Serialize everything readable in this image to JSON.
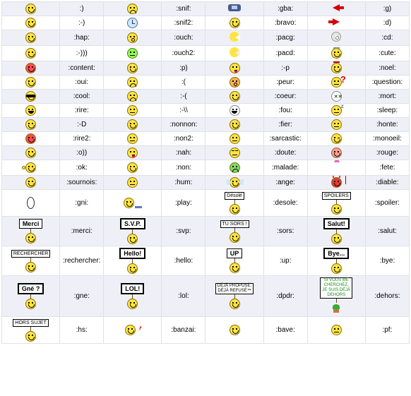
{
  "rows": [
    {
      "h": "",
      "cells": [
        {
          "icon": "face-smile",
          "code": ":)"
        },
        {
          "icon": "face-snif",
          "code": ":snif:"
        },
        {
          "icon": "gba",
          "code": ":gba:"
        },
        {
          "icon": "arrow-left",
          "code": ":g)"
        }
      ]
    },
    {
      "h": "",
      "cells": [
        {
          "icon": "face-smile",
          "code": ":-)"
        },
        {
          "icon": "clock",
          "code": ":snif2:"
        },
        {
          "icon": "face-smile",
          "code": ":bravo:"
        },
        {
          "icon": "arrow-right",
          "code": ":d)"
        }
      ]
    },
    {
      "h": "",
      "cells": [
        {
          "icon": "face-smile",
          "code": ":hap:"
        },
        {
          "icon": "face-ouch",
          "code": ":ouch:"
        },
        {
          "icon": "pacman",
          "code": ":pacg:"
        },
        {
          "icon": "cd",
          "code": ":cd:"
        }
      ]
    },
    {
      "h": "",
      "cells": [
        {
          "icon": "face-smile",
          "code": ":-)))"
        },
        {
          "icon": "face-dizzy",
          "code": ":ouch2:"
        },
        {
          "icon": "pacman-alt",
          "code": ":pacd:"
        },
        {
          "icon": "face-cute",
          "code": ":cute:"
        }
      ]
    },
    {
      "h": "",
      "cells": [
        {
          "icon": "face-red",
          "code": ":content:"
        },
        {
          "icon": "face-smile",
          "code": ":p)"
        },
        {
          "icon": "face-tongue",
          "code": ":-p"
        },
        {
          "icon": "face-noel",
          "code": ":noel:"
        }
      ]
    },
    {
      "h": "",
      "cells": [
        {
          "icon": "face-smile",
          "code": ":oui:"
        },
        {
          "icon": "face-frown",
          "code": ":("
        },
        {
          "icon": "face-peur",
          "code": ":peur:"
        },
        {
          "icon": "face-question",
          "code": ":question:"
        }
      ]
    },
    {
      "h": "",
      "cells": [
        {
          "icon": "face-cool",
          "code": ":cool:"
        },
        {
          "icon": "face-frown",
          "code": ":-("
        },
        {
          "icon": "face-coeur",
          "code": ":coeur:"
        },
        {
          "icon": "face-mort",
          "code": ":mort:"
        }
      ]
    },
    {
      "h": "",
      "cells": [
        {
          "icon": "face-grin",
          "code": ":rire:"
        },
        {
          "icon": "face-flat",
          "code": ":-\\\\"
        },
        {
          "icon": "face-fou",
          "code": ":fou:"
        },
        {
          "icon": "face-sleep",
          "code": ":sleep:"
        }
      ]
    },
    {
      "h": "",
      "cells": [
        {
          "icon": "face-smile",
          "code": ":-D"
        },
        {
          "icon": "face-smile",
          "code": ":nonnon:"
        },
        {
          "icon": "face-smile",
          "code": ":fier:"
        },
        {
          "icon": "face-honte",
          "code": ":honte:"
        }
      ]
    },
    {
      "h": "",
      "cells": [
        {
          "icon": "face-red",
          "code": ":rire2:"
        },
        {
          "icon": "face-non",
          "code": ":non2:"
        },
        {
          "icon": "face-flat",
          "code": ":sarcastic:"
        },
        {
          "icon": "face-monoeil",
          "code": ":monoeil:"
        }
      ]
    },
    {
      "h": "",
      "cells": [
        {
          "icon": "face-smile",
          "code": ":o))"
        },
        {
          "icon": "face-tongue",
          "code": ":nah:"
        },
        {
          "icon": "face-doute",
          "code": ":doute:"
        },
        {
          "icon": "face-rouge",
          "code": ":rouge:"
        }
      ]
    },
    {
      "h": "",
      "cells": [
        {
          "icon": "face-ok",
          "code": ":ok:"
        },
        {
          "icon": "face-smile",
          "code": ":non:"
        },
        {
          "icon": "face-malade",
          "code": ":malade:"
        },
        {
          "icon": "party-hat",
          "code": ":fete:"
        }
      ]
    },
    {
      "h": "",
      "cells": [
        {
          "icon": "face-smile",
          "code": ":sournois:"
        },
        {
          "icon": "face-flat",
          "code": ":hum:"
        },
        {
          "icon": "face-angel",
          "code": ":ange:"
        },
        {
          "icon": "face-devil",
          "code": ":diable:"
        }
      ]
    },
    {
      "h": "tall",
      "cells": [
        {
          "icon": "oval",
          "code": ":gni:"
        },
        {
          "icon": "face-play",
          "code": ":play:"
        },
        {
          "icon": "sign-desole",
          "code": ":desole:"
        },
        {
          "icon": "sign-spoilers",
          "code": ":spoiler:"
        }
      ]
    },
    {
      "h": "tall",
      "cells": [
        {
          "icon": "sign-merci",
          "code": ":merci:"
        },
        {
          "icon": "sign-svp",
          "code": ":svp:"
        },
        {
          "icon": "sign-sors",
          "code": ":sors:"
        },
        {
          "icon": "sign-salut",
          "code": ":salut:"
        }
      ]
    },
    {
      "h": "tall",
      "cells": [
        {
          "icon": "sign-rechercher",
          "code": ":rechercher:"
        },
        {
          "icon": "sign-hello",
          "code": ":hello:"
        },
        {
          "icon": "sign-up",
          "code": ":up:"
        },
        {
          "icon": "sign-bye",
          "code": ":bye:"
        }
      ]
    },
    {
      "h": "xtall",
      "cells": [
        {
          "icon": "sign-gne",
          "code": ":gne:"
        },
        {
          "icon": "sign-lol",
          "code": ":lol:"
        },
        {
          "icon": "sign-dpdr",
          "code": ":dpdr:"
        },
        {
          "icon": "sign-dehors",
          "code": ":dehors:"
        }
      ]
    },
    {
      "h": "tall",
      "cells": [
        {
          "icon": "sign-hs",
          "code": ":hs:"
        },
        {
          "icon": "face-banzai",
          "code": ":banzai:"
        },
        {
          "icon": "face-bave",
          "code": ":bave:"
        },
        {
          "icon": "face-flat",
          "code": ":pf:"
        }
      ]
    }
  ],
  "signs": {
    "desole": "Désolé",
    "spoilers": "SPOILERS",
    "merci": "Merci",
    "svp": "S.V.P.",
    "sors": "TU SORS !",
    "salut": "Salut!",
    "rechercher": "RECHERCHER",
    "hello": "Hello!",
    "up": "UP",
    "bye": "Bye...",
    "gne": "Gné ?",
    "lol": "LOL!",
    "dpdr": "DÉJÀ PROPOSÉ,\nDÉJÀ REFUSÉ™",
    "dehors": "SI VOUS ME\nCHERCHEZ,\nJE SUIS DÉJÀ\nDEHORS",
    "hs": "HORS SUJET"
  },
  "colors": {
    "row_odd": "#eff0f7",
    "row_even": "#ffffff",
    "border": "#e0e0e8",
    "face": "#ffe443",
    "face_border": "#8a6d00",
    "red": "#d40000"
  }
}
